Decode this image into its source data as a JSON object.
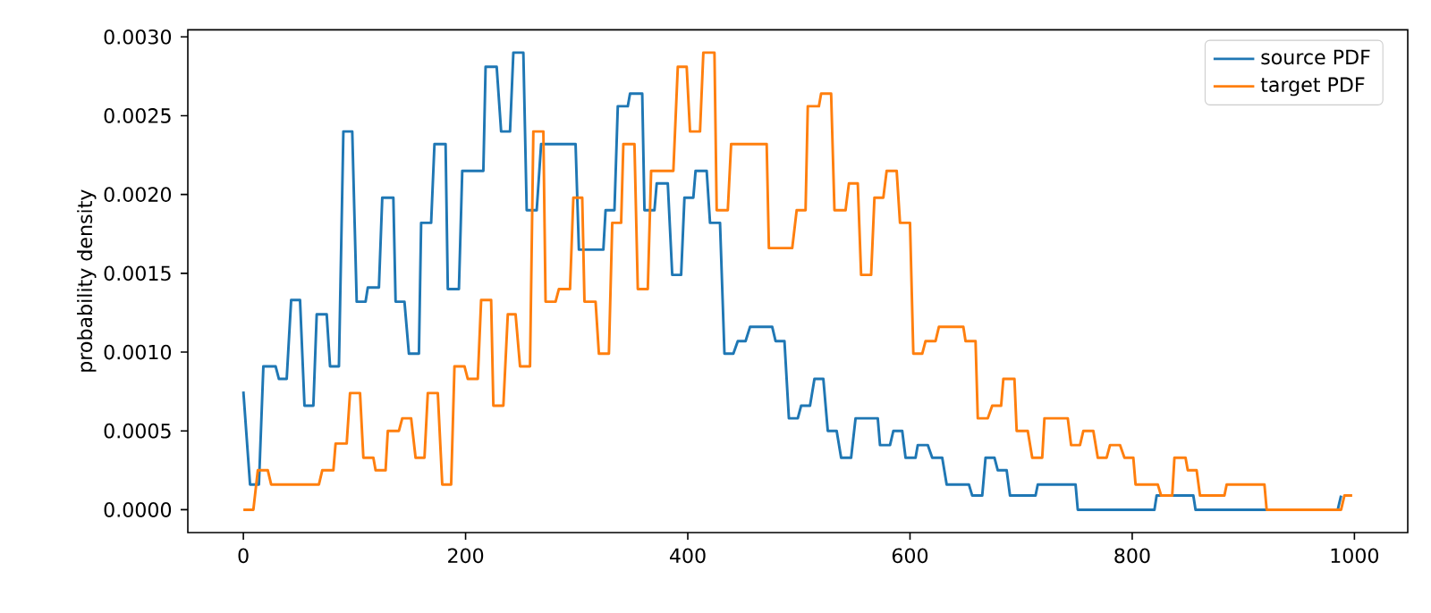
{
  "chart_data": {
    "type": "line",
    "ylabel": "probability density",
    "legend": "top right",
    "xlim": [
      -50,
      1048
    ],
    "ylim": [
      -0.000145,
      0.003045
    ],
    "xticks": [
      0,
      200,
      400,
      600,
      800,
      1000
    ],
    "yticks": [
      {
        "value": 0,
        "label": "0.0000"
      },
      {
        "value": 0.0005,
        "label": "0.0005"
      },
      {
        "value": 0.001,
        "label": "0.0010"
      },
      {
        "value": 0.0015,
        "label": "0.0015"
      },
      {
        "value": 0.002,
        "label": "0.0020"
      },
      {
        "value": 0.0025,
        "label": "0.0025"
      },
      {
        "value": 0.003,
        "label": "0.0030"
      }
    ],
    "series": [
      {
        "name": "source PDF",
        "color": "#1f77b4",
        "x": [
          0,
          6,
          14,
          18,
          29,
          32,
          39,
          43,
          51,
          55,
          63,
          66,
          75,
          78,
          86,
          90,
          98,
          102,
          110,
          112,
          122,
          125,
          135,
          137,
          145,
          149,
          158,
          160,
          169,
          172,
          182,
          184,
          194,
          197,
          216,
          218,
          228,
          232,
          240,
          243,
          252,
          255,
          264,
          268,
          299,
          302,
          324,
          326,
          334,
          337,
          346,
          348,
          359,
          361,
          370,
          372,
          382,
          386,
          394,
          397,
          405,
          407,
          417,
          420,
          429,
          433,
          441,
          445,
          452,
          456,
          476,
          479,
          487,
          491,
          499,
          502,
          510,
          514,
          522,
          526,
          534,
          538,
          547,
          551,
          571,
          573,
          582,
          585,
          593,
          596,
          605,
          607,
          616,
          620,
          629,
          633,
          653,
          656,
          665,
          668,
          676,
          679,
          687,
          690,
          713,
          715,
          749,
          751,
          820,
          822,
          855,
          857,
          985,
          988
        ],
        "values": [
          0.00075,
          0.00016,
          0.00016,
          0.00091,
          0.00091,
          0.00083,
          0.00083,
          0.00133,
          0.00133,
          0.00066,
          0.00066,
          0.00124,
          0.00124,
          0.00091,
          0.00091,
          0.0024,
          0.0024,
          0.00132,
          0.00132,
          0.00141,
          0.00141,
          0.00198,
          0.00198,
          0.00132,
          0.00132,
          0.00099,
          0.00099,
          0.00182,
          0.00182,
          0.00232,
          0.00232,
          0.0014,
          0.0014,
          0.00215,
          0.00215,
          0.00281,
          0.00281,
          0.0024,
          0.0024,
          0.0029,
          0.0029,
          0.0019,
          0.0019,
          0.00232,
          0.00232,
          0.00165,
          0.00165,
          0.0019,
          0.0019,
          0.00256,
          0.00256,
          0.00264,
          0.00264,
          0.0019,
          0.0019,
          0.00207,
          0.00207,
          0.00149,
          0.00149,
          0.00198,
          0.00198,
          0.00215,
          0.00215,
          0.00182,
          0.00182,
          0.00099,
          0.00099,
          0.00107,
          0.00107,
          0.00116,
          0.00116,
          0.00107,
          0.00107,
          0.00058,
          0.00058,
          0.00066,
          0.00066,
          0.00083,
          0.00083,
          0.0005,
          0.0005,
          0.00033,
          0.00033,
          0.00058,
          0.00058,
          0.00041,
          0.00041,
          0.0005,
          0.0005,
          0.00033,
          0.00033,
          0.00041,
          0.00041,
          0.00033,
          0.00033,
          0.00016,
          0.00016,
          9e-05,
          9e-05,
          0.00033,
          0.00033,
          0.00025,
          0.00025,
          9e-05,
          9e-05,
          0.00016,
          0.00016,
          0,
          0,
          9e-05,
          9e-05,
          0,
          0,
          9e-05
        ]
      },
      {
        "name": "target PDF",
        "color": "#ff7f0e",
        "x": [
          0,
          9,
          13,
          22,
          25,
          68,
          71,
          81,
          83,
          93,
          96,
          105,
          108,
          117,
          119,
          128,
          130,
          140,
          143,
          151,
          155,
          163,
          166,
          175,
          179,
          187,
          190,
          199,
          202,
          211,
          214,
          223,
          225,
          234,
          238,
          245,
          249,
          258,
          261,
          270,
          272,
          281,
          284,
          294,
          297,
          305,
          307,
          317,
          320,
          329,
          332,
          340,
          342,
          352,
          355,
          364,
          367,
          387,
          391,
          399,
          402,
          411,
          414,
          424,
          426,
          436,
          439,
          471,
          473,
          494,
          498,
          506,
          508,
          518,
          520,
          529,
          532,
          542,
          545,
          553,
          556,
          565,
          568,
          576,
          579,
          588,
          591,
          600,
          603,
          611,
          614,
          623,
          626,
          648,
          650,
          659,
          661,
          670,
          674,
          682,
          684,
          694,
          696,
          706,
          710,
          719,
          721,
          742,
          745,
          753,
          756,
          765,
          769,
          777,
          780,
          789,
          793,
          801,
          803,
          823,
          826,
          836,
          838,
          848,
          850,
          858,
          861,
          883,
          885,
          919,
          921,
          988,
          991,
          998
        ],
        "values": [
          0,
          0,
          0.00025,
          0.00025,
          0.00016,
          0.00016,
          0.00025,
          0.00025,
          0.00042,
          0.00042,
          0.00074,
          0.00074,
          0.00033,
          0.00033,
          0.00025,
          0.00025,
          0.0005,
          0.0005,
          0.00058,
          0.00058,
          0.00033,
          0.00033,
          0.00074,
          0.00074,
          0.00016,
          0.00016,
          0.00091,
          0.00091,
          0.00083,
          0.00083,
          0.00133,
          0.00133,
          0.00066,
          0.00066,
          0.00124,
          0.00124,
          0.00091,
          0.00091,
          0.0024,
          0.0024,
          0.00132,
          0.00132,
          0.0014,
          0.0014,
          0.00198,
          0.00198,
          0.00132,
          0.00132,
          0.00099,
          0.00099,
          0.00182,
          0.00182,
          0.00232,
          0.00232,
          0.0014,
          0.0014,
          0.00215,
          0.00215,
          0.00281,
          0.00281,
          0.0024,
          0.0024,
          0.0029,
          0.0029,
          0.0019,
          0.0019,
          0.00232,
          0.00232,
          0.00166,
          0.00166,
          0.0019,
          0.0019,
          0.00256,
          0.00256,
          0.00264,
          0.00264,
          0.0019,
          0.0019,
          0.00207,
          0.00207,
          0.00149,
          0.00149,
          0.00198,
          0.00198,
          0.00215,
          0.00215,
          0.00182,
          0.00182,
          0.00099,
          0.00099,
          0.00107,
          0.00107,
          0.00116,
          0.00116,
          0.00107,
          0.00107,
          0.00058,
          0.00058,
          0.00066,
          0.00066,
          0.00083,
          0.00083,
          0.0005,
          0.0005,
          0.00033,
          0.00033,
          0.00058,
          0.00058,
          0.00041,
          0.00041,
          0.0005,
          0.0005,
          0.00033,
          0.00033,
          0.00041,
          0.00041,
          0.00033,
          0.00033,
          0.00016,
          0.00016,
          9e-05,
          9e-05,
          0.00033,
          0.00033,
          0.00025,
          0.00025,
          9e-05,
          9e-05,
          0.00016,
          0.00016,
          0,
          0,
          9e-05,
          9e-05
        ]
      }
    ]
  }
}
